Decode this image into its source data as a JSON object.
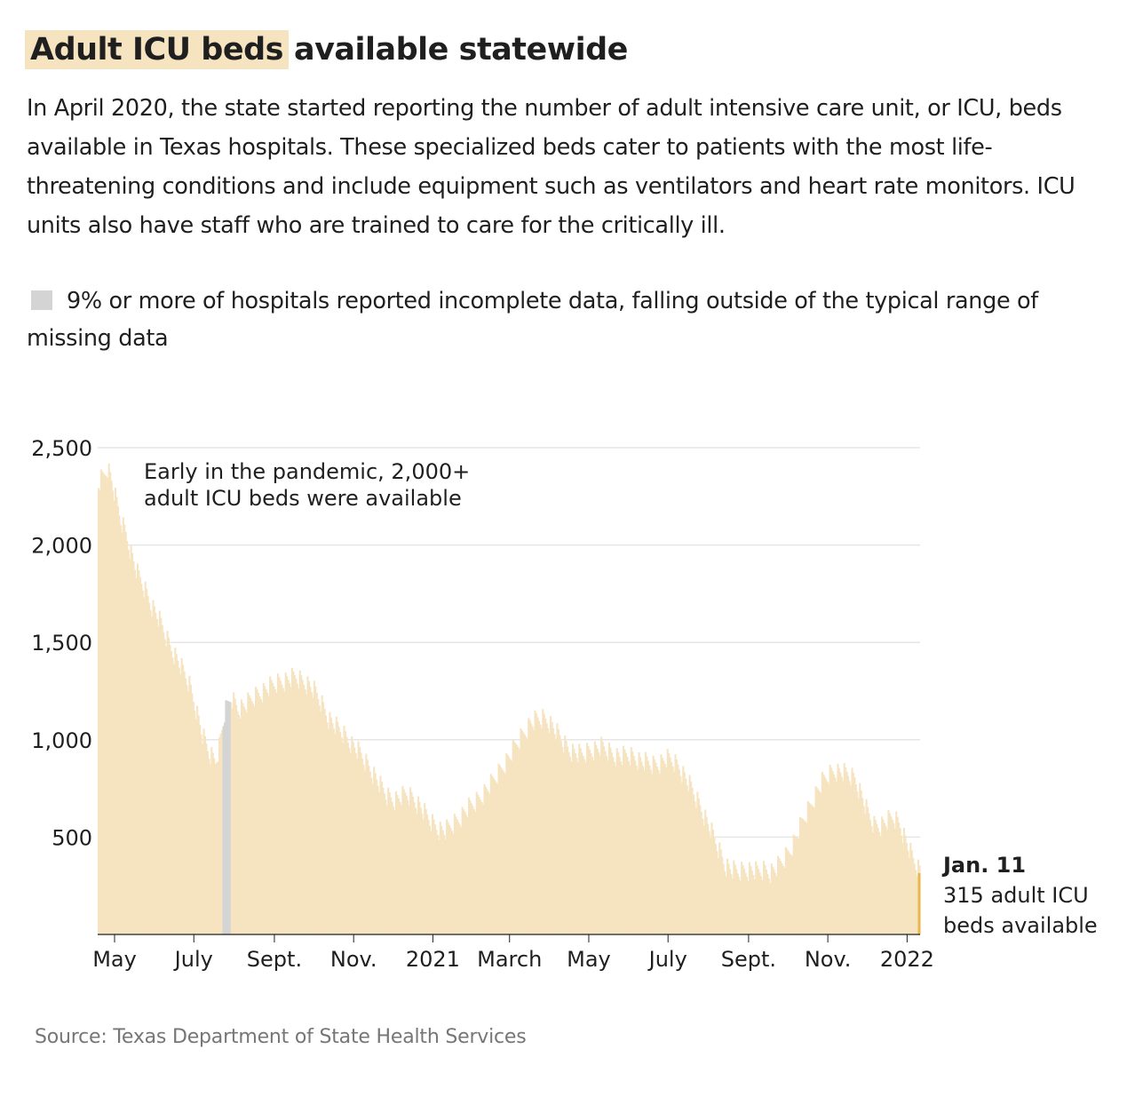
{
  "title": {
    "highlight": "Adult ICU beds",
    "rest": "available statewide"
  },
  "intro": "In April 2020, the state started reporting the number of adult intensive care unit, or ICU, beds available in Texas hospitals. These specialized beds cater to patients with the most life-threatening conditions and include equipment such as ventilators and heart rate monitors. ICU units also have staff who are trained to care for the critically ill.",
  "legend": {
    "swatch_color": "#d4d4d4",
    "text": "9% or more of hospitals reported incomplete data, falling outside of the typical range of missing data"
  },
  "source": "Source: Texas Department of State Health Services",
  "colors": {
    "bars": "#f6e3c0",
    "incomplete": "#d4d4d4",
    "latest": "#e8b84a",
    "grid": "#e6e6e6",
    "axis": "#1f1f1f"
  },
  "chart_data": {
    "type": "bar",
    "title": "Adult ICU beds available statewide",
    "xlabel": "",
    "ylabel": "",
    "x_range": [
      "2020-04-18",
      "2022-01-11"
    ],
    "ylim": [
      0,
      2500
    ],
    "yticks": [
      {
        "value": 500,
        "label": "500"
      },
      {
        "value": 1000,
        "label": "1,000"
      },
      {
        "value": 1500,
        "label": "1,500"
      },
      {
        "value": 2000,
        "label": "2,000"
      },
      {
        "value": 2500,
        "label": "2,500"
      }
    ],
    "xticks": [
      {
        "date": "2020-05-01",
        "label": "May"
      },
      {
        "date": "2020-07-01",
        "label": "July"
      },
      {
        "date": "2020-09-01",
        "label": "Sept."
      },
      {
        "date": "2020-11-01",
        "label": "Nov."
      },
      {
        "date": "2021-01-01",
        "label": "2021"
      },
      {
        "date": "2021-03-01",
        "label": "March"
      },
      {
        "date": "2021-05-01",
        "label": "May"
      },
      {
        "date": "2021-07-01",
        "label": "July"
      },
      {
        "date": "2021-09-01",
        "label": "Sept."
      },
      {
        "date": "2021-11-01",
        "label": "Nov."
      },
      {
        "date": "2022-01-01",
        "label": "2022"
      }
    ],
    "grid": true,
    "series": [
      {
        "values": [
          [
            "2020-04-18",
            2320
          ],
          [
            "2020-04-22",
            2360
          ],
          [
            "2020-04-25",
            2400
          ],
          [
            "2020-04-28",
            2330
          ],
          [
            "2020-05-01",
            2240
          ],
          [
            "2020-05-05",
            2130
          ],
          [
            "2020-05-09",
            2060
          ],
          [
            "2020-05-13",
            1960
          ],
          [
            "2020-05-18",
            1850
          ],
          [
            "2020-05-23",
            1780
          ],
          [
            "2020-05-28",
            1700
          ],
          [
            "2020-06-02",
            1640
          ],
          [
            "2020-06-07",
            1560
          ],
          [
            "2020-06-12",
            1480
          ],
          [
            "2020-06-17",
            1420
          ],
          [
            "2020-06-22",
            1350
          ],
          [
            "2020-06-27",
            1280
          ],
          [
            "2020-07-02",
            1160
          ],
          [
            "2020-07-07",
            1020
          ],
          [
            "2020-07-12",
            930
          ],
          [
            "2020-07-17",
            890
          ],
          [
            "2020-07-20",
            970
          ],
          [
            "2020-07-24",
            1130
          ],
          [
            "2020-07-29",
            1220
          ],
          [
            "2020-08-03",
            1160
          ],
          [
            "2020-08-08",
            1170
          ],
          [
            "2020-08-13",
            1200
          ],
          [
            "2020-08-18",
            1230
          ],
          [
            "2020-08-23",
            1250
          ],
          [
            "2020-08-28",
            1270
          ],
          [
            "2020-09-02",
            1290
          ],
          [
            "2020-09-07",
            1300
          ],
          [
            "2020-09-12",
            1310
          ],
          [
            "2020-09-17",
            1320
          ],
          [
            "2020-09-22",
            1300
          ],
          [
            "2020-09-27",
            1280
          ],
          [
            "2020-10-02",
            1240
          ],
          [
            "2020-10-07",
            1180
          ],
          [
            "2020-10-12",
            1110
          ],
          [
            "2020-10-17",
            1070
          ],
          [
            "2020-10-22",
            1040
          ],
          [
            "2020-10-27",
            1000
          ],
          [
            "2020-11-01",
            960
          ],
          [
            "2020-11-06",
            920
          ],
          [
            "2020-11-11",
            870
          ],
          [
            "2020-11-16",
            820
          ],
          [
            "2020-11-21",
            760
          ],
          [
            "2020-11-26",
            710
          ],
          [
            "2020-12-01",
            690
          ],
          [
            "2020-12-06",
            700
          ],
          [
            "2020-12-11",
            720
          ],
          [
            "2020-12-16",
            700
          ],
          [
            "2020-12-21",
            660
          ],
          [
            "2020-12-26",
            610
          ],
          [
            "2020-12-31",
            570
          ],
          [
            "2021-01-05",
            540
          ],
          [
            "2021-01-10",
            530
          ],
          [
            "2021-01-15",
            560
          ],
          [
            "2021-01-20",
            590
          ],
          [
            "2021-01-25",
            630
          ],
          [
            "2021-01-30",
            660
          ],
          [
            "2021-02-04",
            690
          ],
          [
            "2021-02-09",
            730
          ],
          [
            "2021-02-14",
            770
          ],
          [
            "2021-02-19",
            820
          ],
          [
            "2021-02-24",
            870
          ],
          [
            "2021-03-01",
            920
          ],
          [
            "2021-03-06",
            980
          ],
          [
            "2021-03-11",
            1030
          ],
          [
            "2021-03-16",
            1080
          ],
          [
            "2021-03-21",
            1100
          ],
          [
            "2021-03-26",
            1110
          ],
          [
            "2021-03-31",
            1090
          ],
          [
            "2021-04-05",
            1040
          ],
          [
            "2021-04-10",
            990
          ],
          [
            "2021-04-15",
            950
          ],
          [
            "2021-04-20",
            930
          ],
          [
            "2021-04-25",
            920
          ],
          [
            "2021-04-30",
            940
          ],
          [
            "2021-05-05",
            950
          ],
          [
            "2021-05-10",
            960
          ],
          [
            "2021-05-15",
            940
          ],
          [
            "2021-05-20",
            920
          ],
          [
            "2021-05-25",
            910
          ],
          [
            "2021-05-30",
            920
          ],
          [
            "2021-06-04",
            910
          ],
          [
            "2021-06-09",
            890
          ],
          [
            "2021-06-14",
            880
          ],
          [
            "2021-06-19",
            870
          ],
          [
            "2021-06-24",
            880
          ],
          [
            "2021-06-29",
            900
          ],
          [
            "2021-07-04",
            890
          ],
          [
            "2021-07-09",
            860
          ],
          [
            "2021-07-14",
            800
          ],
          [
            "2021-07-19",
            740
          ],
          [
            "2021-07-24",
            670
          ],
          [
            "2021-07-29",
            600
          ],
          [
            "2021-08-03",
            520
          ],
          [
            "2021-08-08",
            440
          ],
          [
            "2021-08-13",
            360
          ],
          [
            "2021-08-18",
            330
          ],
          [
            "2021-08-23",
            320
          ],
          [
            "2021-08-28",
            330
          ],
          [
            "2021-09-02",
            330
          ],
          [
            "2021-09-07",
            320
          ],
          [
            "2021-09-12",
            330
          ],
          [
            "2021-09-17",
            320
          ],
          [
            "2021-09-22",
            340
          ],
          [
            "2021-09-27",
            380
          ],
          [
            "2021-10-02",
            430
          ],
          [
            "2021-10-07",
            500
          ],
          [
            "2021-10-12",
            580
          ],
          [
            "2021-10-17",
            650
          ],
          [
            "2021-10-22",
            720
          ],
          [
            "2021-10-27",
            780
          ],
          [
            "2021-11-01",
            820
          ],
          [
            "2021-11-06",
            840
          ],
          [
            "2021-11-11",
            830
          ],
          [
            "2021-11-16",
            820
          ],
          [
            "2021-11-21",
            800
          ],
          [
            "2021-11-26",
            720
          ],
          [
            "2021-12-01",
            620
          ],
          [
            "2021-12-06",
            560
          ],
          [
            "2021-12-11",
            560
          ],
          [
            "2021-12-16",
            580
          ],
          [
            "2021-12-21",
            600
          ],
          [
            "2021-12-26",
            560
          ],
          [
            "2021-12-31",
            470
          ],
          [
            "2022-01-05",
            380
          ],
          [
            "2022-01-11",
            315
          ]
        ]
      }
    ],
    "incomplete_periods": [
      [
        "2020-07-23",
        "2020-07-28"
      ]
    ],
    "annotations": [
      {
        "date": "2020-04-30",
        "text_lines": [
          "Early in the pandemic, 2,000+",
          "adult ICU beds were available"
        ]
      },
      {
        "date": "2022-01-11",
        "value": 315,
        "title": "Jan. 11",
        "text_lines": [
          "315 adult ICU",
          "beds available"
        ]
      }
    ]
  }
}
